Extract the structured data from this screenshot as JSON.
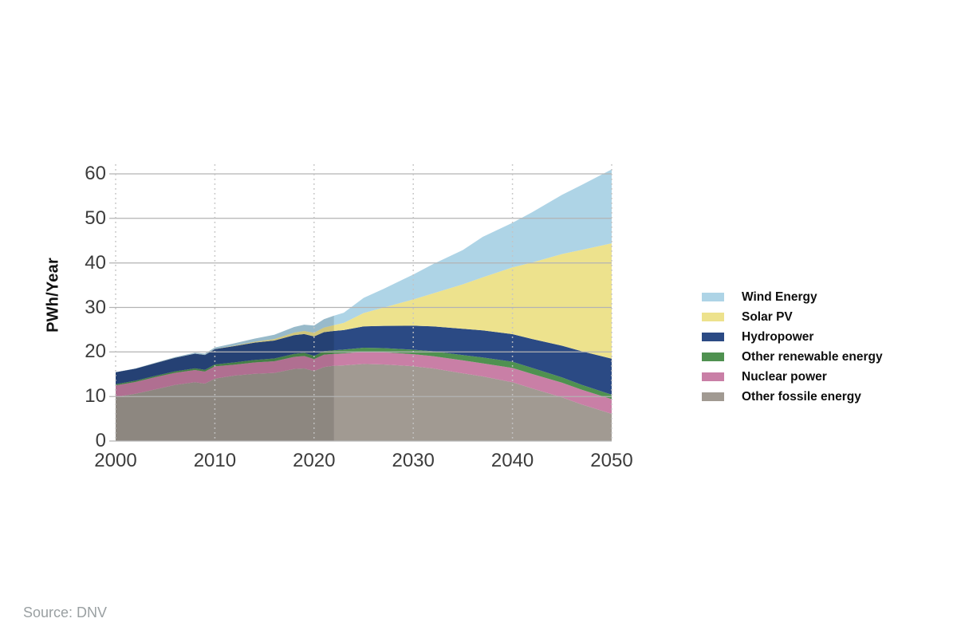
{
  "source_note": "Source: DNV",
  "chart_data": {
    "type": "area",
    "stacked": true,
    "title": "",
    "xlabel": "",
    "ylabel": "PWh/Year",
    "unit": "PWh/Year",
    "xlim": [
      2000,
      2050
    ],
    "ylim": [
      0,
      60
    ],
    "y_ticks": [
      0,
      10,
      20,
      30,
      40,
      50,
      60
    ],
    "x_ticks": [
      2000,
      2010,
      2020,
      2030,
      2040,
      2050
    ],
    "grid": {
      "horizontal": "solid",
      "vertical": "dotted"
    },
    "legend_position": "right",
    "axis_colors": {
      "grid_h": "#b3b3b3",
      "grid_v": "#c4c4c4",
      "tick_label": "#3c3c3c"
    },
    "history_shading": {
      "from": 2000,
      "until": 2022,
      "overlay_color": "rgba(0,0,0,0.12)"
    },
    "years": [
      2000,
      2002,
      2004,
      2006,
      2008,
      2009,
      2010,
      2012,
      2014,
      2016,
      2018,
      2019,
      2020,
      2021,
      2022,
      2023,
      2025,
      2027,
      2030,
      2032,
      2035,
      2037,
      2040,
      2042,
      2045,
      2047,
      2050
    ],
    "series": [
      {
        "name": "other-fossile-energy",
        "label": "Other fossile energy",
        "color": "#a19a92",
        "values": [
          9.9,
          10.6,
          11.6,
          12.6,
          13.2,
          12.9,
          14.0,
          14.7,
          15.1,
          15.3,
          16.2,
          16.3,
          15.7,
          16.6,
          16.9,
          17.0,
          17.3,
          17.2,
          16.8,
          16.3,
          15.2,
          14.5,
          13.2,
          11.8,
          9.8,
          8.2,
          6.1
        ]
      },
      {
        "name": "nuclear-power",
        "label": "Nuclear power",
        "color": "#c97fa6",
        "values": [
          2.6,
          2.66,
          2.74,
          2.72,
          2.74,
          2.7,
          2.76,
          2.46,
          2.54,
          2.61,
          2.7,
          2.79,
          2.69,
          2.8,
          2.68,
          2.69,
          2.75,
          2.72,
          2.7,
          2.75,
          2.9,
          2.95,
          3.2,
          3.25,
          3.3,
          3.3,
          3.3
        ]
      },
      {
        "name": "other-renewable-energy",
        "label": "Other renewable energy",
        "color": "#4f9150",
        "values": [
          0.25,
          0.28,
          0.3,
          0.34,
          0.38,
          0.4,
          0.43,
          0.5,
          0.56,
          0.62,
          0.68,
          0.71,
          0.74,
          0.77,
          0.8,
          0.83,
          0.9,
          0.95,
          1.0,
          1.1,
          1.2,
          1.3,
          1.4,
          1.35,
          1.2,
          1.1,
          1.0
        ]
      },
      {
        "name": "hydropower",
        "label": "Hydropower",
        "color": "#2b4a84",
        "values": [
          2.7,
          2.71,
          2.84,
          3.04,
          3.29,
          3.33,
          3.44,
          3.67,
          3.9,
          4.04,
          4.19,
          4.22,
          4.35,
          4.27,
          4.33,
          4.4,
          4.8,
          5.0,
          5.4,
          5.6,
          5.9,
          6.1,
          6.2,
          6.5,
          7.1,
          7.55,
          8.1
        ]
      },
      {
        "name": "solar-pv",
        "label": "Solar PV",
        "color": "#ede28d",
        "values": [
          0.0,
          0.0,
          0.01,
          0.01,
          0.01,
          0.02,
          0.03,
          0.1,
          0.19,
          0.33,
          0.58,
          0.7,
          0.85,
          1.05,
          1.32,
          1.6,
          3.0,
          4.1,
          5.9,
          7.4,
          10.0,
          11.9,
          15.0,
          17.2,
          20.6,
          22.8,
          25.9
        ]
      },
      {
        "name": "wind-energy",
        "label": "Wind Energy",
        "color": "#aed4e6",
        "values": [
          0.03,
          0.05,
          0.09,
          0.13,
          0.22,
          0.28,
          0.34,
          0.52,
          0.71,
          0.96,
          1.26,
          1.42,
          1.59,
          1.86,
          2.1,
          2.3,
          3.4,
          4.2,
          5.6,
          6.6,
          7.7,
          9.1,
          10.0,
          11.3,
          13.3,
          14.6,
          16.6
        ]
      }
    ]
  }
}
